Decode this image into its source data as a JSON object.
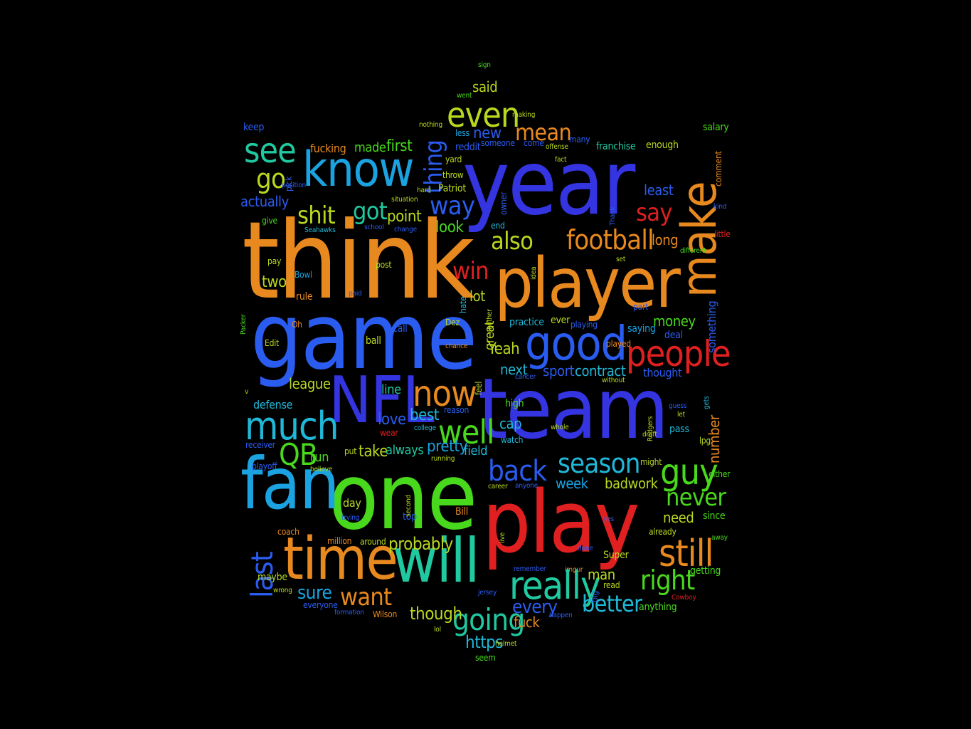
{
  "palette": {
    "orange": "#e8891f",
    "blue": "#3434e0",
    "royal": "#2b5cf0",
    "sky": "#1aa3e0",
    "teal": "#20c9a0",
    "green": "#48d81c",
    "lime": "#b8d820",
    "red": "#e02020",
    "olive": "#9cc020",
    "cyan": "#20b8d8",
    "darkblue": "#2020c0"
  },
  "words": [
    {
      "text": "think",
      "c": "orange"
    },
    {
      "text": "game",
      "c": "royal"
    },
    {
      "text": "year",
      "c": "blue"
    },
    {
      "text": "player",
      "c": "orange"
    },
    {
      "text": "team",
      "c": "blue"
    },
    {
      "text": "one",
      "c": "green"
    },
    {
      "text": "play",
      "c": "red"
    },
    {
      "text": "fan",
      "c": "sky"
    },
    {
      "text": "NFL",
      "c": "blue"
    },
    {
      "text": "time",
      "c": "orange"
    },
    {
      "text": "will",
      "c": "teal"
    },
    {
      "text": "know",
      "c": "sky"
    },
    {
      "text": "good",
      "c": "royal"
    },
    {
      "text": "people",
      "c": "red"
    },
    {
      "text": "make",
      "c": "orange"
    },
    {
      "text": "much",
      "c": "cyan"
    },
    {
      "text": "now",
      "c": "orange"
    },
    {
      "text": "well",
      "c": "green"
    },
    {
      "text": "really",
      "c": "teal"
    },
    {
      "text": "going",
      "c": "teal"
    },
    {
      "text": "still",
      "c": "orange"
    },
    {
      "text": "guy",
      "c": "green"
    },
    {
      "text": "season",
      "c": "cyan"
    },
    {
      "text": "see",
      "c": "teal"
    },
    {
      "text": "even",
      "c": "lime"
    },
    {
      "text": "back",
      "c": "royal"
    },
    {
      "text": "football",
      "c": "orange"
    },
    {
      "text": "shit",
      "c": "lime"
    },
    {
      "text": "QB",
      "c": "green"
    },
    {
      "text": "never",
      "c": "green"
    },
    {
      "text": "right",
      "c": "green"
    },
    {
      "text": "way",
      "c": "royal"
    },
    {
      "text": "mean",
      "c": "orange"
    },
    {
      "text": "say",
      "c": "red"
    },
    {
      "text": "win",
      "c": "red"
    },
    {
      "text": "also",
      "c": "lime"
    },
    {
      "text": "want",
      "c": "orange"
    },
    {
      "text": "better",
      "c": "cyan"
    },
    {
      "text": "go",
      "c": "lime"
    },
    {
      "text": "got",
      "c": "teal"
    },
    {
      "text": "thing",
      "c": "royal"
    },
    {
      "text": "last",
      "c": "royal"
    },
    {
      "text": "probably",
      "c": "lime"
    },
    {
      "text": "though",
      "c": "lime"
    },
    {
      "text": "sure",
      "c": "sky"
    },
    {
      "text": "every",
      "c": "royal"
    },
    {
      "text": "https",
      "c": "cyan"
    },
    {
      "text": "fuck",
      "c": "orange"
    },
    {
      "text": "pretty",
      "c": "sky"
    },
    {
      "text": "best",
      "c": "cyan"
    },
    {
      "text": "love",
      "c": "royal"
    },
    {
      "text": "take",
      "c": "lime"
    },
    {
      "text": "always",
      "c": "teal"
    },
    {
      "text": "field",
      "c": "cyan"
    },
    {
      "text": "cap",
      "c": "cyan"
    },
    {
      "text": "week",
      "c": "sky"
    },
    {
      "text": "badwork",
      "c": "lime"
    },
    {
      "text": "man",
      "c": "lime"
    },
    {
      "text": "need",
      "c": "lime"
    },
    {
      "text": "money",
      "c": "green"
    },
    {
      "text": "Yeah",
      "c": "lime"
    },
    {
      "text": "contract",
      "c": "cyan"
    },
    {
      "text": "next",
      "c": "cyan"
    },
    {
      "text": "sport",
      "c": "royal"
    },
    {
      "text": "thought",
      "c": "royal"
    },
    {
      "text": "least",
      "c": "royal"
    },
    {
      "text": "long",
      "c": "orange"
    },
    {
      "text": "look",
      "c": "green"
    },
    {
      "text": "point",
      "c": "lime"
    },
    {
      "text": "made",
      "c": "green"
    },
    {
      "text": "first",
      "c": "green"
    },
    {
      "text": "new",
      "c": "royal"
    },
    {
      "text": "actually",
      "c": "royal"
    },
    {
      "text": "two",
      "c": "lime"
    },
    {
      "text": "league",
      "c": "lime"
    },
    {
      "text": "line",
      "c": "teal"
    },
    {
      "text": "defense",
      "c": "cyan"
    },
    {
      "text": "run",
      "c": "green"
    },
    {
      "text": "lot",
      "c": "lime"
    },
    {
      "text": "great",
      "c": "lime"
    },
    {
      "text": "practice",
      "c": "cyan"
    },
    {
      "text": "ever",
      "c": "lime"
    },
    {
      "text": "saying",
      "c": "sky"
    },
    {
      "text": "day",
      "c": "lime"
    },
    {
      "text": "top",
      "c": "royal"
    },
    {
      "text": "maybe",
      "c": "lime"
    },
    {
      "text": "fucking",
      "c": "orange"
    },
    {
      "text": "franchise",
      "c": "teal"
    },
    {
      "text": "enough",
      "c": "lime"
    },
    {
      "text": "salary",
      "c": "green"
    },
    {
      "text": "keep",
      "c": "royal"
    },
    {
      "text": "said",
      "c": "lime"
    },
    {
      "text": "sign",
      "c": "green"
    },
    {
      "text": "went",
      "c": "green"
    },
    {
      "text": "nothing",
      "c": "lime"
    },
    {
      "text": "less",
      "c": "sky"
    },
    {
      "text": "making",
      "c": "lime"
    },
    {
      "text": "someone",
      "c": "royal"
    },
    {
      "text": "come",
      "c": "royal"
    },
    {
      "text": "offense",
      "c": "lime"
    },
    {
      "text": "many",
      "c": "royal"
    },
    {
      "text": "reddit",
      "c": "royal"
    },
    {
      "text": "yard",
      "c": "lime"
    },
    {
      "text": "fact",
      "c": "lime"
    },
    {
      "text": "throw",
      "c": "lime"
    },
    {
      "text": "Patriot",
      "c": "lime"
    },
    {
      "text": "situation",
      "c": "lime"
    },
    {
      "text": "hard",
      "c": "lime"
    },
    {
      "text": "owner",
      "c": "royal"
    },
    {
      "text": "end",
      "c": "cyan"
    },
    {
      "text": "school",
      "c": "royal"
    },
    {
      "text": "change",
      "c": "royal"
    },
    {
      "text": "Seahawks",
      "c": "cyan"
    },
    {
      "text": "give",
      "c": "green"
    },
    {
      "text": "position",
      "c": "royal"
    },
    {
      "text": "pick",
      "c": "royal"
    },
    {
      "text": "pay",
      "c": "lime"
    },
    {
      "text": "post",
      "c": "lime"
    },
    {
      "text": "Bowl",
      "c": "sky"
    },
    {
      "text": "rule",
      "c": "orange"
    },
    {
      "text": "paid",
      "c": "royal"
    },
    {
      "text": "hate",
      "c": "cyan"
    },
    {
      "text": "another",
      "c": "lime"
    },
    {
      "text": "idea",
      "c": "lime"
    },
    {
      "text": "set",
      "c": "lime"
    },
    {
      "text": "part",
      "c": "royal"
    },
    {
      "text": "playing",
      "c": "royal"
    },
    {
      "text": "played",
      "c": "orange"
    },
    {
      "text": "deal",
      "c": "royal"
    },
    {
      "text": "without",
      "c": "lime"
    },
    {
      "text": "cancer",
      "c": "royal"
    },
    {
      "text": "Packer",
      "c": "green"
    },
    {
      "text": "Oh",
      "c": "orange"
    },
    {
      "text": "Edit",
      "c": "lime"
    },
    {
      "text": "call",
      "c": "royal"
    },
    {
      "text": "ball",
      "c": "lime"
    },
    {
      "text": "Dez",
      "c": "lime"
    },
    {
      "text": "chance",
      "c": "orange"
    },
    {
      "text": "feel",
      "c": "lime"
    },
    {
      "text": "high",
      "c": "green"
    },
    {
      "text": "reason",
      "c": "royal"
    },
    {
      "text": "wear",
      "c": "red"
    },
    {
      "text": "college",
      "c": "cyan"
    },
    {
      "text": "whole",
      "c": "lime"
    },
    {
      "text": "watch",
      "c": "cyan"
    },
    {
      "text": "draft",
      "c": "lime"
    },
    {
      "text": "Rodgers",
      "c": "lime"
    },
    {
      "text": "guess",
      "c": "royal"
    },
    {
      "text": "let",
      "c": "lime"
    },
    {
      "text": "pass",
      "c": "cyan"
    },
    {
      "text": "lpg",
      "c": "lime"
    },
    {
      "text": "number",
      "c": "orange"
    },
    {
      "text": "gets",
      "c": "cyan"
    },
    {
      "text": "either",
      "c": "green"
    },
    {
      "text": "something",
      "c": "royal"
    },
    {
      "text": "different",
      "c": "green"
    },
    {
      "text": "Thank",
      "c": "royal"
    },
    {
      "text": "kind",
      "c": "royal"
    },
    {
      "text": "little",
      "c": "red"
    },
    {
      "text": "comment",
      "c": "orange"
    },
    {
      "text": "receiver",
      "c": "royal"
    },
    {
      "text": "playoff",
      "c": "royal"
    },
    {
      "text": "believe",
      "c": "lime"
    },
    {
      "text": "put",
      "c": "lime"
    },
    {
      "text": "running",
      "c": "lime"
    },
    {
      "text": "might",
      "c": "lime"
    },
    {
      "text": "career",
      "c": "lime"
    },
    {
      "text": "anyone",
      "c": "royal"
    },
    {
      "text": "live",
      "c": "lime"
    },
    {
      "text": "yes",
      "c": "royal"
    },
    {
      "text": "already",
      "c": "lime"
    },
    {
      "text": "since",
      "c": "green"
    },
    {
      "text": "away",
      "c": "green"
    },
    {
      "text": "million",
      "c": "orange"
    },
    {
      "text": "around",
      "c": "lime"
    },
    {
      "text": "trying",
      "c": "royal"
    },
    {
      "text": "second",
      "c": "lime"
    },
    {
      "text": "Bill",
      "c": "orange"
    },
    {
      "text": "coach",
      "c": "orange"
    },
    {
      "text": "done",
      "c": "royal"
    },
    {
      "text": "Super",
      "c": "lime"
    },
    {
      "text": "remember",
      "c": "royal"
    },
    {
      "text": "imgur",
      "c": "orange"
    },
    {
      "text": "read",
      "c": "lime"
    },
    {
      "text": "big",
      "c": "royal"
    },
    {
      "text": "getting",
      "c": "green"
    },
    {
      "text": "wrong",
      "c": "lime"
    },
    {
      "text": "everyone",
      "c": "royal"
    },
    {
      "text": "formation",
      "c": "royal"
    },
    {
      "text": "Wilson",
      "c": "orange"
    },
    {
      "text": "jersey",
      "c": "royal"
    },
    {
      "text": "happen",
      "c": "royal"
    },
    {
      "text": "anything",
      "c": "green"
    },
    {
      "text": "Cowboy",
      "c": "red"
    },
    {
      "text": "lol",
      "c": "lime"
    },
    {
      "text": "helmet",
      "c": "lime"
    },
    {
      "text": "seem",
      "c": "green"
    },
    {
      "text": "v",
      "c": "lime"
    }
  ]
}
